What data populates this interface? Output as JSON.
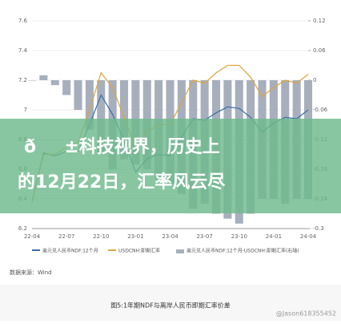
{
  "chart_data": {
    "type": "line",
    "categories": [
      "22-04",
      null,
      null,
      "22-07",
      null,
      null,
      "22-10",
      null,
      null,
      "23-01",
      null,
      null,
      "23-04",
      null,
      null,
      "23-07",
      null,
      null,
      "23-10",
      null,
      null,
      "24-01",
      null,
      null,
      "24-04"
    ],
    "series": [
      {
        "name": "美元兑人民币NDF:12个月",
        "color": "#3a6fa8",
        "values": [
          6.38,
          6.71,
          6.69,
          6.72,
          6.72,
          6.9,
          7.1,
          6.97,
          6.79,
          6.58,
          6.67,
          6.7,
          6.69,
          6.82,
          6.94,
          6.93,
          6.98,
          7.02,
          7.01,
          6.95,
          6.85,
          6.91,
          6.95,
          6.94,
          7.0
        ]
      },
      {
        "name": "USDCNH:即期汇率",
        "color": "#e0a33a",
        "values": [
          6.38,
          6.7,
          6.7,
          6.75,
          6.78,
          7.0,
          7.25,
          7.15,
          6.95,
          6.75,
          6.85,
          6.9,
          6.9,
          7.05,
          7.2,
          7.18,
          7.25,
          7.3,
          7.3,
          7.22,
          7.09,
          7.15,
          7.2,
          7.18,
          7.24
        ]
      },
      {
        "name": "美元兑人民币NDF:12个月-USDCNH:即期汇率(右轴)",
        "color": "#a7afbd",
        "axis": "y2",
        "type": "bar",
        "values": [
          0.0,
          0.01,
          -0.01,
          -0.03,
          -0.06,
          -0.1,
          -0.15,
          -0.18,
          -0.16,
          -0.17,
          -0.18,
          -0.2,
          -0.21,
          -0.23,
          -0.26,
          -0.25,
          -0.27,
          -0.28,
          -0.29,
          -0.27,
          -0.24,
          -0.24,
          -0.25,
          -0.24,
          -0.24
        ]
      }
    ],
    "ylim": [
      6.2,
      7.6
    ],
    "yticks": [
      6.2,
      6.4,
      6.6,
      6.8,
      7,
      7.2,
      7.4,
      7.6
    ],
    "y2lim": [
      -0.3,
      0.12
    ],
    "y2ticks": [
      -0.3,
      -0.24,
      -0.18,
      -0.12,
      -0.06,
      0,
      0.06,
      0.12
    ],
    "grid": true,
    "source": "数据来源：Wind",
    "caption": "图5:1年期NDF与离岸人民币即期汇率价差"
  },
  "watermark": "@Jason618355452",
  "overlay": {
    "line1": "ð±科技视界，历史上",
    "line2": "的12月22日，汇率风云尽"
  }
}
